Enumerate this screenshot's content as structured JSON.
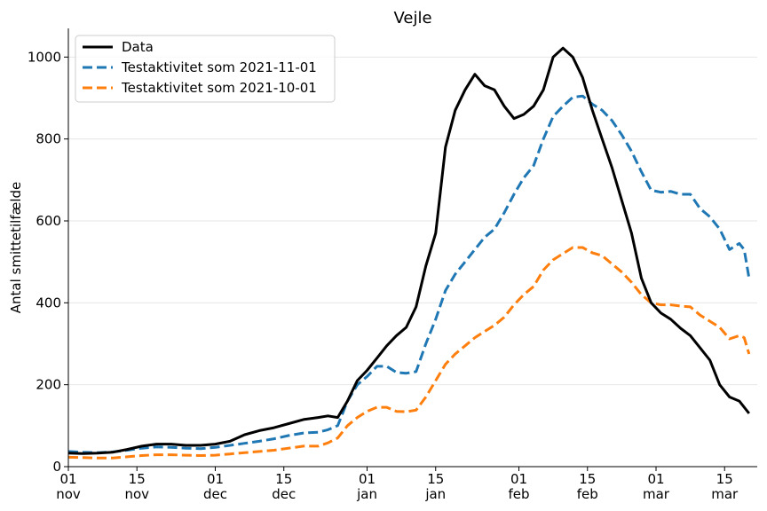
{
  "chart_data": {
    "type": "line",
    "title": "Vejle",
    "ylabel": "Antal smittetilfælde",
    "xlabel": "",
    "ylim": [
      0,
      1070
    ],
    "xlim": [
      "2021-11-01",
      "2022-03-20"
    ],
    "yticks": [
      0,
      200,
      400,
      600,
      800,
      1000
    ],
    "grid": "horizontal",
    "legend": "top-left",
    "xticks": [
      {
        "date": "2021-11-01",
        "day": "01",
        "month": "nov"
      },
      {
        "date": "2021-11-15",
        "day": "15",
        "month": "nov"
      },
      {
        "date": "2021-12-01",
        "day": "01",
        "month": "dec"
      },
      {
        "date": "2021-12-15",
        "day": "15",
        "month": "dec"
      },
      {
        "date": "2022-01-01",
        "day": "01",
        "month": "jan"
      },
      {
        "date": "2022-01-15",
        "day": "15",
        "month": "jan"
      },
      {
        "date": "2022-02-01",
        "day": "01",
        "month": "feb"
      },
      {
        "date": "2022-02-15",
        "day": "15",
        "month": "feb"
      },
      {
        "date": "2022-03-01",
        "day": "01",
        "month": "mar"
      },
      {
        "date": "2022-03-15",
        "day": "15",
        "month": "mar"
      }
    ],
    "series": [
      {
        "name": "Data",
        "color": "#000000",
        "dash": "solid",
        "points": [
          [
            "2021-11-01",
            33
          ],
          [
            "2021-11-04",
            32
          ],
          [
            "2021-11-07",
            33
          ],
          [
            "2021-11-10",
            35
          ],
          [
            "2021-11-13",
            42
          ],
          [
            "2021-11-16",
            50
          ],
          [
            "2021-11-19",
            55
          ],
          [
            "2021-11-22",
            55
          ],
          [
            "2021-11-25",
            52
          ],
          [
            "2021-11-28",
            52
          ],
          [
            "2021-12-01",
            55
          ],
          [
            "2021-12-04",
            62
          ],
          [
            "2021-12-07",
            78
          ],
          [
            "2021-12-10",
            88
          ],
          [
            "2021-12-13",
            95
          ],
          [
            "2021-12-16",
            105
          ],
          [
            "2021-12-19",
            115
          ],
          [
            "2021-12-22",
            120
          ],
          [
            "2021-12-24",
            124
          ],
          [
            "2021-12-26",
            120
          ],
          [
            "2021-12-28",
            160
          ],
          [
            "2021-12-30",
            210
          ],
          [
            "2022-01-01",
            235
          ],
          [
            "2022-01-03",
            265
          ],
          [
            "2022-01-05",
            295
          ],
          [
            "2022-01-07",
            320
          ],
          [
            "2022-01-09",
            340
          ],
          [
            "2022-01-11",
            390
          ],
          [
            "2022-01-13",
            490
          ],
          [
            "2022-01-15",
            570
          ],
          [
            "2022-01-17",
            780
          ],
          [
            "2022-01-19",
            870
          ],
          [
            "2022-01-21",
            920
          ],
          [
            "2022-01-23",
            958
          ],
          [
            "2022-01-25",
            930
          ],
          [
            "2022-01-27",
            920
          ],
          [
            "2022-01-29",
            880
          ],
          [
            "2022-01-31",
            850
          ],
          [
            "2022-02-02",
            860
          ],
          [
            "2022-02-04",
            880
          ],
          [
            "2022-02-06",
            920
          ],
          [
            "2022-02-08",
            1000
          ],
          [
            "2022-02-10",
            1022
          ],
          [
            "2022-02-12",
            1000
          ],
          [
            "2022-02-14",
            950
          ],
          [
            "2022-02-16",
            870
          ],
          [
            "2022-02-18",
            800
          ],
          [
            "2022-02-20",
            730
          ],
          [
            "2022-02-22",
            650
          ],
          [
            "2022-02-24",
            570
          ],
          [
            "2022-02-26",
            460
          ],
          [
            "2022-02-28",
            400
          ],
          [
            "2022-03-02",
            375
          ],
          [
            "2022-03-04",
            360
          ],
          [
            "2022-03-06",
            338
          ],
          [
            "2022-03-08",
            320
          ],
          [
            "2022-03-10",
            290
          ],
          [
            "2022-03-12",
            260
          ],
          [
            "2022-03-14",
            200
          ],
          [
            "2022-03-16",
            170
          ],
          [
            "2022-03-18",
            160
          ],
          [
            "2022-03-20",
            130
          ]
        ]
      },
      {
        "name": "Testaktivitet som 2021-11-01",
        "color": "#1f77b4",
        "dash": "dashed",
        "points": [
          [
            "2021-11-01",
            37
          ],
          [
            "2021-11-04",
            35
          ],
          [
            "2021-11-07",
            34
          ],
          [
            "2021-11-10",
            36
          ],
          [
            "2021-11-13",
            40
          ],
          [
            "2021-11-16",
            45
          ],
          [
            "2021-11-19",
            48
          ],
          [
            "2021-11-22",
            47
          ],
          [
            "2021-11-25",
            45
          ],
          [
            "2021-11-28",
            44
          ],
          [
            "2021-12-01",
            47
          ],
          [
            "2021-12-04",
            52
          ],
          [
            "2021-12-07",
            57
          ],
          [
            "2021-12-10",
            62
          ],
          [
            "2021-12-13",
            68
          ],
          [
            "2021-12-16",
            76
          ],
          [
            "2021-12-19",
            82
          ],
          [
            "2021-12-22",
            84
          ],
          [
            "2021-12-24",
            90
          ],
          [
            "2021-12-26",
            100
          ],
          [
            "2021-12-28",
            160
          ],
          [
            "2021-12-30",
            200
          ],
          [
            "2022-01-01",
            220
          ],
          [
            "2022-01-03",
            245
          ],
          [
            "2022-01-05",
            245
          ],
          [
            "2022-01-07",
            230
          ],
          [
            "2022-01-09",
            228
          ],
          [
            "2022-01-11",
            232
          ],
          [
            "2022-01-13",
            300
          ],
          [
            "2022-01-15",
            360
          ],
          [
            "2022-01-17",
            430
          ],
          [
            "2022-01-19",
            470
          ],
          [
            "2022-01-21",
            500
          ],
          [
            "2022-01-23",
            530
          ],
          [
            "2022-01-25",
            560
          ],
          [
            "2022-01-27",
            580
          ],
          [
            "2022-01-29",
            620
          ],
          [
            "2022-01-31",
            665
          ],
          [
            "2022-02-02",
            705
          ],
          [
            "2022-02-04",
            735
          ],
          [
            "2022-02-06",
            800
          ],
          [
            "2022-02-08",
            855
          ],
          [
            "2022-02-10",
            880
          ],
          [
            "2022-02-12",
            902
          ],
          [
            "2022-02-14",
            905
          ],
          [
            "2022-02-16",
            885
          ],
          [
            "2022-02-18",
            870
          ],
          [
            "2022-02-20",
            845
          ],
          [
            "2022-02-22",
            810
          ],
          [
            "2022-02-24",
            770
          ],
          [
            "2022-02-26",
            720
          ],
          [
            "2022-02-28",
            675
          ],
          [
            "2022-03-02",
            670
          ],
          [
            "2022-03-04",
            672
          ],
          [
            "2022-03-06",
            665
          ],
          [
            "2022-03-08",
            665
          ],
          [
            "2022-03-10",
            630
          ],
          [
            "2022-03-12",
            610
          ],
          [
            "2022-03-14",
            580
          ],
          [
            "2022-03-16",
            530
          ],
          [
            "2022-03-18",
            545
          ],
          [
            "2022-03-19",
            530
          ],
          [
            "2022-03-20",
            460
          ]
        ]
      },
      {
        "name": "Testaktivitet som 2021-10-01",
        "color": "#ff7f0e",
        "dash": "dashed",
        "points": [
          [
            "2021-11-01",
            23
          ],
          [
            "2021-11-04",
            22
          ],
          [
            "2021-11-07",
            21
          ],
          [
            "2021-11-10",
            21
          ],
          [
            "2021-11-13",
            24
          ],
          [
            "2021-11-16",
            27
          ],
          [
            "2021-11-19",
            29
          ],
          [
            "2021-11-22",
            29
          ],
          [
            "2021-11-25",
            28
          ],
          [
            "2021-11-28",
            27
          ],
          [
            "2021-12-01",
            28
          ],
          [
            "2021-12-04",
            31
          ],
          [
            "2021-12-07",
            34
          ],
          [
            "2021-12-10",
            37
          ],
          [
            "2021-12-13",
            40
          ],
          [
            "2021-12-16",
            45
          ],
          [
            "2021-12-19",
            50
          ],
          [
            "2021-12-22",
            50
          ],
          [
            "2021-12-24",
            58
          ],
          [
            "2021-12-26",
            70
          ],
          [
            "2021-12-28",
            100
          ],
          [
            "2021-12-30",
            120
          ],
          [
            "2022-01-01",
            135
          ],
          [
            "2022-01-03",
            145
          ],
          [
            "2022-01-05",
            145
          ],
          [
            "2022-01-07",
            135
          ],
          [
            "2022-01-09",
            134
          ],
          [
            "2022-01-11",
            138
          ],
          [
            "2022-01-13",
            170
          ],
          [
            "2022-01-15",
            210
          ],
          [
            "2022-01-17",
            250
          ],
          [
            "2022-01-19",
            275
          ],
          [
            "2022-01-21",
            295
          ],
          [
            "2022-01-23",
            315
          ],
          [
            "2022-01-25",
            330
          ],
          [
            "2022-01-27",
            345
          ],
          [
            "2022-01-29",
            365
          ],
          [
            "2022-01-31",
            395
          ],
          [
            "2022-02-02",
            420
          ],
          [
            "2022-02-04",
            440
          ],
          [
            "2022-02-06",
            480
          ],
          [
            "2022-02-08",
            505
          ],
          [
            "2022-02-10",
            520
          ],
          [
            "2022-02-12",
            535
          ],
          [
            "2022-02-14",
            535
          ],
          [
            "2022-02-16",
            522
          ],
          [
            "2022-02-18",
            515
          ],
          [
            "2022-02-20",
            495
          ],
          [
            "2022-02-22",
            475
          ],
          [
            "2022-02-24",
            450
          ],
          [
            "2022-02-26",
            420
          ],
          [
            "2022-02-28",
            400
          ],
          [
            "2022-03-02",
            395
          ],
          [
            "2022-03-04",
            395
          ],
          [
            "2022-03-06",
            392
          ],
          [
            "2022-03-08",
            390
          ],
          [
            "2022-03-10",
            370
          ],
          [
            "2022-03-12",
            355
          ],
          [
            "2022-03-14",
            340
          ],
          [
            "2022-03-16",
            312
          ],
          [
            "2022-03-18",
            320
          ],
          [
            "2022-03-19",
            315
          ],
          [
            "2022-03-20",
            275
          ]
        ]
      }
    ]
  }
}
